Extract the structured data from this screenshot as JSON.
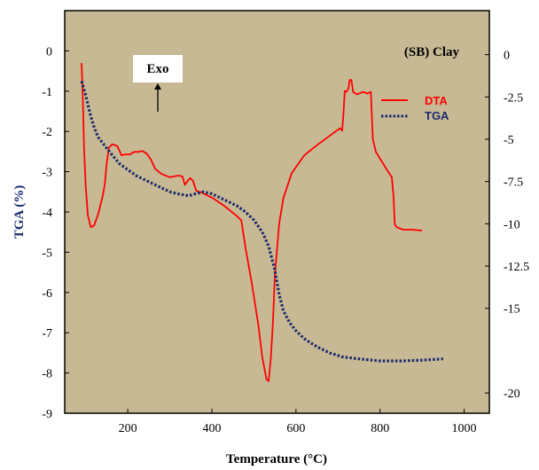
{
  "chart_data": {
    "type": "line",
    "title": "(SB) Clay",
    "xlabel": "Temperature (°C)",
    "ylabel": "TGA (%)",
    "y2label": "",
    "annotation": "Exo",
    "xlim": [
      50,
      1060
    ],
    "ylim": [
      -9,
      1
    ],
    "y2lim": [
      -21.2,
      2.6
    ],
    "x_ticks": [
      "200",
      "400",
      "600",
      "800",
      "1000"
    ],
    "y_ticks": [
      "0",
      "-1",
      "-2",
      "-3",
      "-4",
      "-5",
      "-6",
      "-7",
      "-8",
      "-9"
    ],
    "y2_ticks": [
      "0",
      "-2.5",
      "-5",
      "-7.5",
      "-10",
      "-12.5",
      "-15",
      "-20"
    ],
    "y2_tick_values": [
      0,
      -2.5,
      -5,
      -7.5,
      -10,
      -12.5,
      -15,
      -20
    ],
    "grid": false,
    "legend_position": "top-right",
    "background": "#c8b995",
    "series": [
      {
        "name": "DTA",
        "axis": "right",
        "color": "#ff0000",
        "style": "solid",
        "points": [
          [
            90,
            -0.5
          ],
          [
            93,
            -2.5
          ],
          [
            96,
            -5.5
          ],
          [
            100,
            -7.8
          ],
          [
            105,
            -9.5
          ],
          [
            112,
            -10.2
          ],
          [
            120,
            -10.1
          ],
          [
            130,
            -9.4
          ],
          [
            140,
            -8.4
          ],
          [
            145,
            -7.7
          ],
          [
            150,
            -6.4
          ],
          [
            155,
            -5.5
          ],
          [
            163,
            -5.3
          ],
          [
            175,
            -5.4
          ],
          [
            185,
            -5.95
          ],
          [
            195,
            -5.9
          ],
          [
            205,
            -5.9
          ],
          [
            215,
            -5.75
          ],
          [
            225,
            -5.75
          ],
          [
            235,
            -5.7
          ],
          [
            245,
            -5.85
          ],
          [
            255,
            -6.2
          ],
          [
            265,
            -6.75
          ],
          [
            280,
            -7.05
          ],
          [
            300,
            -7.25
          ],
          [
            320,
            -7.15
          ],
          [
            330,
            -7.2
          ],
          [
            336,
            -7.7
          ],
          [
            343,
            -7.45
          ],
          [
            348,
            -7.3
          ],
          [
            355,
            -7.45
          ],
          [
            363,
            -8.05
          ],
          [
            375,
            -8.15
          ],
          [
            400,
            -8.45
          ],
          [
            430,
            -8.95
          ],
          [
            460,
            -9.55
          ],
          [
            470,
            -9.8
          ],
          [
            480,
            -11.4
          ],
          [
            495,
            -13.5
          ],
          [
            510,
            -15.9
          ],
          [
            520,
            -17.9
          ],
          [
            530,
            -19.2
          ],
          [
            535,
            -19.3
          ],
          [
            540,
            -18.0
          ],
          [
            545,
            -15.9
          ],
          [
            550,
            -13.0
          ],
          [
            560,
            -10.0
          ],
          [
            570,
            -8.5
          ],
          [
            590,
            -7.0
          ],
          [
            620,
            -5.95
          ],
          [
            650,
            -5.35
          ],
          [
            680,
            -4.8
          ],
          [
            705,
            -4.35
          ],
          [
            710,
            -4.5
          ],
          [
            713,
            -3.5
          ],
          [
            716,
            -2.15
          ],
          [
            720,
            -2.2
          ],
          [
            725,
            -2.0
          ],
          [
            728,
            -1.5
          ],
          [
            732,
            -1.5
          ],
          [
            736,
            -2.2
          ],
          [
            745,
            -2.35
          ],
          [
            760,
            -2.2
          ],
          [
            770,
            -2.3
          ],
          [
            778,
            -2.2
          ],
          [
            783,
            -5.0
          ],
          [
            790,
            -5.75
          ],
          [
            800,
            -6.15
          ],
          [
            815,
            -6.75
          ],
          [
            828,
            -7.25
          ],
          [
            832,
            -8.4
          ],
          [
            835,
            -10.05
          ],
          [
            840,
            -10.2
          ],
          [
            855,
            -10.35
          ],
          [
            875,
            -10.35
          ],
          [
            900,
            -10.4
          ]
        ]
      },
      {
        "name": "TGA",
        "axis": "left",
        "color": "#1a2a6b",
        "style": "dotted",
        "points": [
          [
            90,
            -0.75
          ],
          [
            100,
            -1.1
          ],
          [
            110,
            -1.55
          ],
          [
            120,
            -1.9
          ],
          [
            130,
            -2.15
          ],
          [
            145,
            -2.35
          ],
          [
            160,
            -2.55
          ],
          [
            180,
            -2.8
          ],
          [
            200,
            -2.95
          ],
          [
            220,
            -3.1
          ],
          [
            250,
            -3.25
          ],
          [
            280,
            -3.4
          ],
          [
            300,
            -3.5
          ],
          [
            320,
            -3.55
          ],
          [
            345,
            -3.6
          ],
          [
            360,
            -3.55
          ],
          [
            380,
            -3.5
          ],
          [
            400,
            -3.55
          ],
          [
            420,
            -3.65
          ],
          [
            440,
            -3.75
          ],
          [
            460,
            -3.85
          ],
          [
            480,
            -4.0
          ],
          [
            500,
            -4.2
          ],
          [
            520,
            -4.5
          ],
          [
            535,
            -4.85
          ],
          [
            550,
            -5.45
          ],
          [
            560,
            -6.05
          ],
          [
            570,
            -6.45
          ],
          [
            585,
            -6.75
          ],
          [
            600,
            -6.95
          ],
          [
            620,
            -7.15
          ],
          [
            650,
            -7.35
          ],
          [
            680,
            -7.5
          ],
          [
            710,
            -7.6
          ],
          [
            750,
            -7.65
          ],
          [
            800,
            -7.7
          ],
          [
            850,
            -7.7
          ],
          [
            900,
            -7.68
          ],
          [
            950,
            -7.65
          ]
        ]
      }
    ]
  }
}
